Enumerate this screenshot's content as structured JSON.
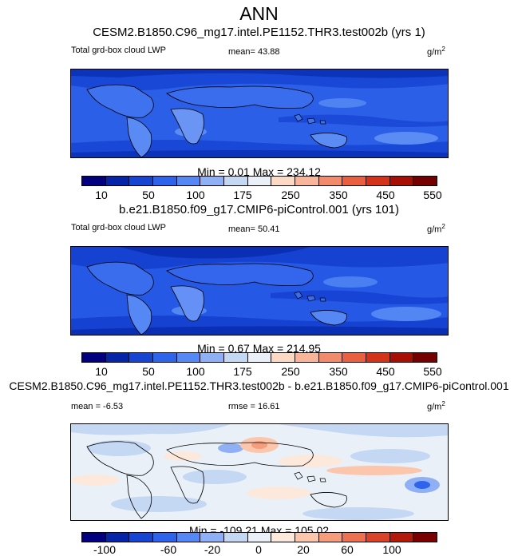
{
  "figure": {
    "title": "ANN"
  },
  "palettes": {
    "abs": [
      "#02007f",
      "#0624a8",
      "#1645d1",
      "#2e63ec",
      "#5688f5",
      "#8fb0f5",
      "#c4d7f3",
      "#eaf0f8",
      "#fcd9c4",
      "#f8b59a",
      "#f28b6b",
      "#e8603f",
      "#d23319",
      "#a70f05",
      "#750000"
    ],
    "diff": [
      "#02007f",
      "#0624a8",
      "#1645d1",
      "#2e63ec",
      "#5688f5",
      "#8fb0f5",
      "#c4d7f3",
      "#eaf0f8",
      "#fde8dc",
      "#fbc6ac",
      "#f59d7d",
      "#ec7150",
      "#d9432a",
      "#b21a0c",
      "#7a0000"
    ]
  },
  "chart_data": [
    {
      "type": "heatmap",
      "title": "CESM2.B1850.C96_mg17.intel.PE1152.THR3.test002b (yrs 1)",
      "variable_label": "Total grd-box cloud LWP",
      "stat_text": "mean=  43.88",
      "units": "g/m",
      "units_exp": "2",
      "minmax_text": "Min =   0.01 Max = 234.12",
      "colorbar_ticks": [
        "10",
        "50",
        "100",
        "175",
        "250",
        "350",
        "450",
        "550"
      ],
      "colorbar_levels": 15
    },
    {
      "type": "heatmap",
      "title": "b.e21.B1850.f09_g17.CMIP6-piControl.001 (yrs 101)",
      "variable_label": "Total grd-box cloud LWP",
      "stat_text": "mean=  50.41",
      "units": "g/m",
      "units_exp": "2",
      "minmax_text": "Min =   0.67 Max = 214.95",
      "colorbar_ticks": [
        "10",
        "50",
        "100",
        "175",
        "250",
        "350",
        "450",
        "550"
      ],
      "colorbar_levels": 15
    },
    {
      "type": "heatmap",
      "title": "CESM2.B1850.C96_mg17.intel.PE1152.THR3.test002b - b.e21.B1850.f09_g17.CMIP6-piControl.001",
      "variable_label": "mean =  -6.53",
      "stat_text": "rmse =  16.61",
      "units": "g/m",
      "units_exp": "2",
      "minmax_text": "Min = -109.21 Max = 105.02",
      "colorbar_ticks": [
        "-100",
        "-60",
        "-20",
        "0",
        "20",
        "60",
        "100"
      ],
      "colorbar_levels": 15
    }
  ]
}
